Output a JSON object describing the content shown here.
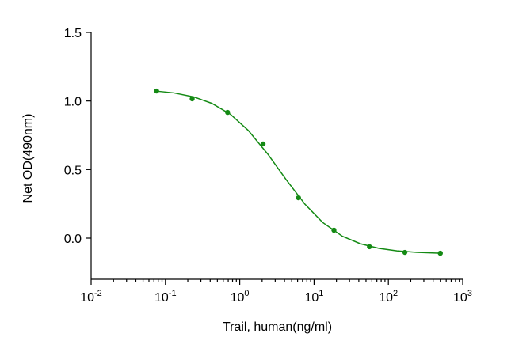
{
  "chart_data": {
    "type": "scatter",
    "xlabel": "Trail, human(ng/ml)",
    "ylabel": "Net OD(490nm)",
    "xscale": "log",
    "xlim": [
      0.01,
      1000
    ],
    "ylim": [
      -0.3,
      1.5
    ],
    "xticks": [
      {
        "value": 0.01,
        "label": "10",
        "exponent": "-2"
      },
      {
        "value": 0.1,
        "label": "10",
        "exponent": "-1"
      },
      {
        "value": 1,
        "label": "10",
        "exponent": "0"
      },
      {
        "value": 10,
        "label": "10",
        "exponent": "1"
      },
      {
        "value": 100,
        "label": "10",
        "exponent": "2"
      },
      {
        "value": 1000,
        "label": "10",
        "exponent": "3"
      }
    ],
    "xminorticks": [
      0.02,
      0.03,
      0.04,
      0.05,
      0.06,
      0.07,
      0.08,
      0.09,
      0.2,
      0.3,
      0.4,
      0.5,
      0.6,
      0.7,
      0.8,
      0.9,
      2,
      3,
      4,
      5,
      6,
      7,
      8,
      9,
      20,
      30,
      40,
      50,
      60,
      70,
      80,
      90,
      200,
      300,
      400,
      500,
      600,
      700,
      800,
      900
    ],
    "yticks": [
      1.5,
      {
        "value": 1.0,
        "label": "1.0"
      },
      0.5,
      {
        "value": 0.0,
        "label": "0.0"
      }
    ],
    "series": [
      {
        "type": "scatter",
        "color": "#148a14",
        "x": [
          0.076,
          0.229,
          0.686,
          2.06,
          6.17,
          18.5,
          55.6,
          166.7,
          500
        ],
        "values": [
          1.073,
          1.016,
          0.917,
          0.687,
          0.294,
          0.058,
          -0.063,
          -0.104,
          -0.11
        ]
      },
      {
        "type": "line",
        "color": "#148a14",
        "x": [
          0.076,
          0.13,
          0.24,
          0.42,
          0.75,
          1.3,
          2.4,
          4.2,
          7.5,
          13,
          24,
          42,
          75,
          130,
          240,
          500
        ],
        "values": [
          1.072,
          1.059,
          1.03,
          0.983,
          0.903,
          0.786,
          0.611,
          0.427,
          0.249,
          0.115,
          0.014,
          -0.041,
          -0.075,
          -0.093,
          -0.104,
          -0.11
        ]
      }
    ]
  }
}
